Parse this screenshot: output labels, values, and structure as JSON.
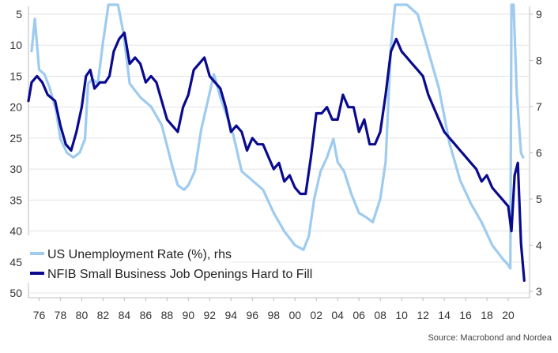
{
  "chart_data": {
    "type": "line",
    "title": "",
    "xlabel": "",
    "ylabel_left": "",
    "ylabel_right": "",
    "source": "Source: Macrobond and Nordea",
    "x_ticks": [
      "76",
      "78",
      "80",
      "82",
      "84",
      "86",
      "88",
      "90",
      "92",
      "94",
      "96",
      "98",
      "00",
      "02",
      "04",
      "06",
      "08",
      "10",
      "12",
      "14",
      "16",
      "18",
      "20"
    ],
    "x_range": [
      1975.0,
      2022.0
    ],
    "left_axis": {
      "ticks": [
        5,
        10,
        15,
        20,
        25,
        30,
        35,
        40,
        45,
        50
      ],
      "range": [
        4,
        50
      ],
      "inverted": true
    },
    "right_axis": {
      "ticks": [
        3,
        4,
        5,
        6,
        7,
        8,
        9
      ],
      "range": [
        3,
        9.2
      ]
    },
    "grid": "horizontal",
    "legend_position": "bottom-left",
    "series": [
      {
        "name": "US Unemployment Rate (%), rhs",
        "axis": "right",
        "color": "#9ecbef",
        "x": [
          1975.3,
          1975.6,
          1976.0,
          1976.5,
          1977.0,
          1977.6,
          1978.0,
          1978.6,
          1979.2,
          1979.8,
          1980.3,
          1980.6,
          1981.0,
          1981.5,
          1982.0,
          1982.5,
          1982.9,
          1983.4,
          1983.9,
          1984.5,
          1985.5,
          1986.5,
          1987.5,
          1988.5,
          1989.0,
          1989.6,
          1990.0,
          1990.6,
          1991.2,
          1991.8,
          1992.4,
          1993.0,
          1993.6,
          1994.2,
          1995.0,
          1996.0,
          1997.0,
          1998.0,
          1999.0,
          2000.0,
          2000.8,
          2001.3,
          2001.8,
          2002.4,
          2003.0,
          2003.6,
          2004.0,
          2004.6,
          2005.3,
          2006.0,
          2006.7,
          2007.3,
          2008.0,
          2008.5,
          2009.0,
          2009.4,
          2009.8,
          2010.5,
          2011.5,
          2012.5,
          2013.5,
          2014.5,
          2015.5,
          2016.5,
          2017.5,
          2018.5,
          2019.5,
          2019.9,
          2020.2,
          2020.3,
          2020.5,
          2020.8,
          2021.2,
          2021.4
        ],
        "y": [
          8.2,
          8.9,
          7.8,
          7.7,
          7.4,
          6.9,
          6.3,
          6.0,
          5.9,
          6.0,
          6.3,
          7.5,
          7.6,
          7.5,
          8.4,
          9.3,
          10.8,
          10.2,
          8.6,
          7.5,
          7.2,
          7.0,
          6.6,
          5.7,
          5.3,
          5.2,
          5.3,
          5.6,
          6.5,
          7.1,
          7.7,
          7.2,
          6.8,
          6.4,
          5.6,
          5.4,
          5.2,
          4.7,
          4.3,
          4.0,
          3.9,
          4.2,
          5.0,
          5.6,
          5.9,
          6.3,
          5.8,
          5.6,
          5.1,
          4.7,
          4.6,
          4.5,
          5.0,
          5.8,
          8.3,
          9.4,
          10.0,
          9.4,
          9.0,
          8.2,
          7.4,
          6.2,
          5.4,
          4.9,
          4.5,
          4.0,
          3.7,
          3.6,
          3.5,
          14.5,
          11.5,
          7.3,
          6.0,
          5.9
        ]
      },
      {
        "name": "NFIB Small Business Job Openings Hard to Fill",
        "axis": "left",
        "color": "#0a0a8f",
        "x": [
          1975.0,
          1975.3,
          1975.8,
          1976.3,
          1976.8,
          1977.5,
          1978.0,
          1978.5,
          1979.0,
          1979.5,
          1980.0,
          1980.4,
          1980.8,
          1981.2,
          1981.7,
          1982.2,
          1982.6,
          1983.0,
          1983.5,
          1984.0,
          1984.5,
          1985.0,
          1985.5,
          1986.0,
          1986.5,
          1987.0,
          1987.5,
          1988.0,
          1988.5,
          1989.0,
          1989.5,
          1990.0,
          1990.5,
          1991.0,
          1991.5,
          1992.0,
          1992.5,
          1993.0,
          1993.5,
          1994.0,
          1994.5,
          1995.0,
          1995.5,
          1996.0,
          1996.5,
          1997.0,
          1997.5,
          1998.0,
          1998.5,
          1999.0,
          1999.5,
          2000.0,
          2000.5,
          2001.0,
          2001.5,
          2002.0,
          2002.5,
          2003.0,
          2003.5,
          2004.0,
          2004.5,
          2005.0,
          2005.5,
          2006.0,
          2006.5,
          2007.0,
          2007.5,
          2008.0,
          2008.5,
          2009.0,
          2009.5,
          2010.0,
          2010.5,
          2011.0,
          2011.5,
          2012.0,
          2012.5,
          2013.0,
          2013.5,
          2014.0,
          2014.5,
          2015.0,
          2015.5,
          2016.0,
          2016.5,
          2017.0,
          2017.5,
          2018.0,
          2018.5,
          2019.0,
          2019.5,
          2020.0,
          2020.3,
          2020.6,
          2020.9,
          2021.2,
          2021.5
        ],
        "y": [
          19,
          16,
          15,
          16,
          18,
          19,
          23,
          26,
          27,
          24,
          20,
          15,
          14,
          17,
          16,
          16,
          15,
          11,
          9,
          8,
          13,
          12,
          13,
          16,
          15,
          16,
          19,
          22,
          23,
          24,
          20,
          18,
          14,
          13,
          12,
          15,
          16,
          17,
          20,
          24,
          23,
          24,
          27,
          25,
          26,
          26,
          28,
          30,
          29,
          32,
          31,
          33,
          34,
          34,
          28,
          21,
          21,
          20,
          22,
          22,
          18,
          20,
          20,
          24,
          22,
          26,
          26,
          24,
          18,
          11,
          9,
          11,
          12,
          13,
          14,
          15,
          18,
          20,
          22,
          24,
          25,
          26,
          27,
          28,
          29,
          30,
          32,
          31,
          33,
          34,
          35,
          36,
          40,
          31,
          29,
          42,
          48
        ]
      }
    ]
  }
}
